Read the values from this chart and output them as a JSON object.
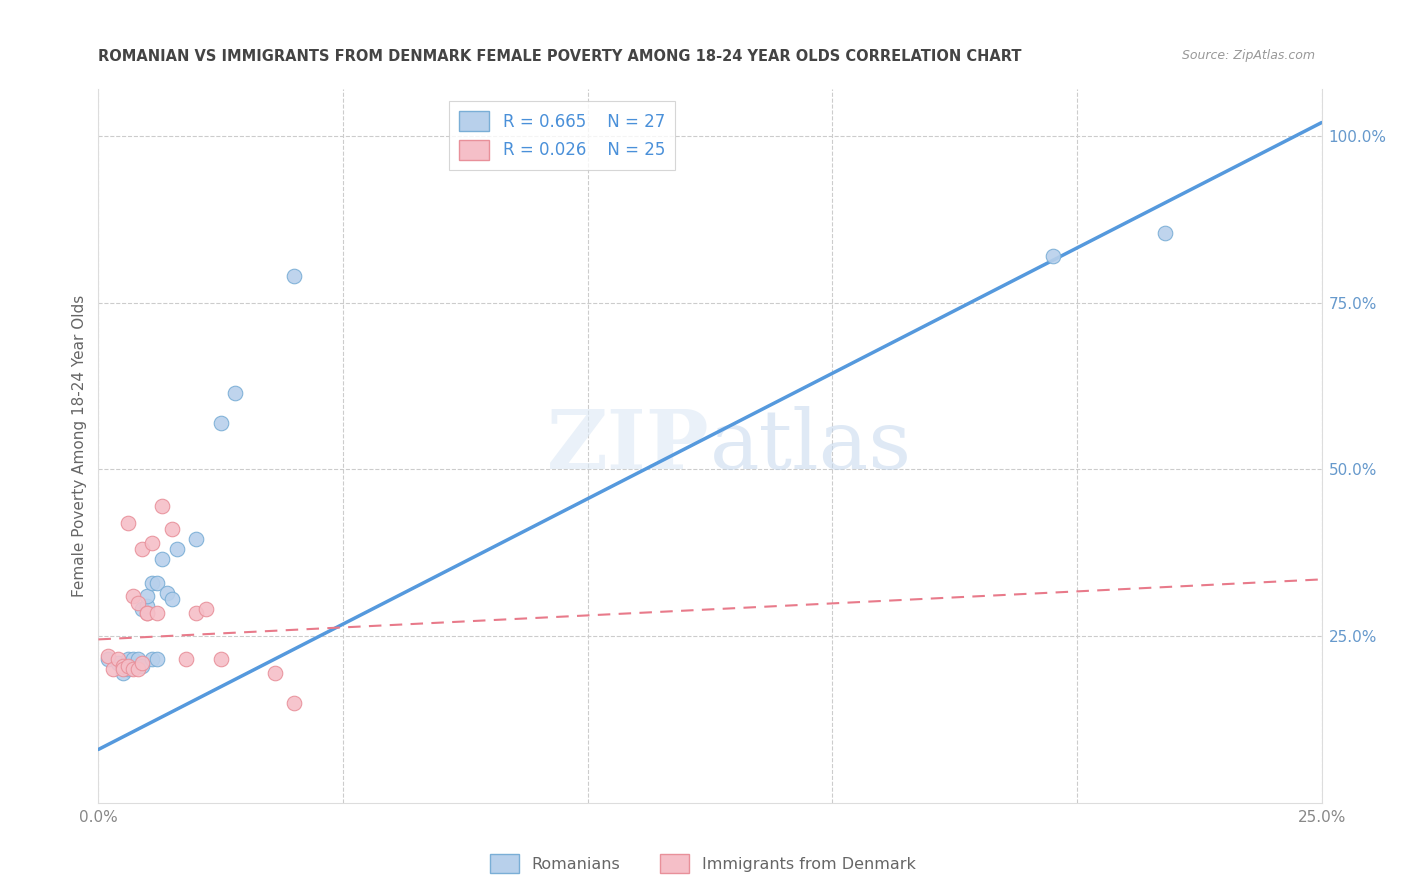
{
  "title": "ROMANIAN VS IMMIGRANTS FROM DENMARK FEMALE POVERTY AMONG 18-24 YEAR OLDS CORRELATION CHART",
  "source": "Source: ZipAtlas.com",
  "ylabel": "Female Poverty Among 18-24 Year Olds",
  "xlim": [
    0.0,
    0.25
  ],
  "ylim": [
    0.0,
    1.07
  ],
  "x_ticks": [
    0.0,
    0.05,
    0.1,
    0.15,
    0.2,
    0.25
  ],
  "y_ticks": [
    0.25,
    0.5,
    0.75,
    1.0
  ],
  "legend_r1": "R = 0.665",
  "legend_n1": "N = 27",
  "legend_r2": "R = 0.026",
  "legend_n2": "N = 25",
  "romanians_x": [
    0.002,
    0.004,
    0.005,
    0.005,
    0.006,
    0.006,
    0.007,
    0.007,
    0.008,
    0.009,
    0.009,
    0.01,
    0.01,
    0.011,
    0.011,
    0.012,
    0.012,
    0.013,
    0.014,
    0.015,
    0.016,
    0.02,
    0.025,
    0.028,
    0.04,
    0.195,
    0.218
  ],
  "romanians_y": [
    0.215,
    0.21,
    0.205,
    0.195,
    0.215,
    0.2,
    0.215,
    0.205,
    0.215,
    0.29,
    0.205,
    0.295,
    0.31,
    0.33,
    0.215,
    0.33,
    0.215,
    0.365,
    0.315,
    0.305,
    0.38,
    0.395,
    0.57,
    0.615,
    0.79,
    0.82,
    0.855
  ],
  "denmark_x": [
    0.002,
    0.003,
    0.004,
    0.005,
    0.005,
    0.006,
    0.006,
    0.007,
    0.007,
    0.008,
    0.008,
    0.009,
    0.009,
    0.01,
    0.01,
    0.011,
    0.012,
    0.013,
    0.015,
    0.018,
    0.02,
    0.022,
    0.025,
    0.036,
    0.04
  ],
  "denmark_y": [
    0.22,
    0.2,
    0.215,
    0.205,
    0.2,
    0.42,
    0.205,
    0.31,
    0.2,
    0.3,
    0.2,
    0.38,
    0.21,
    0.285,
    0.285,
    0.39,
    0.285,
    0.445,
    0.41,
    0.215,
    0.285,
    0.29,
    0.215,
    0.195,
    0.15
  ],
  "blue_line_x": [
    0.0,
    0.25
  ],
  "blue_line_y": [
    0.08,
    1.02
  ],
  "pink_line_x": [
    0.0,
    0.25
  ],
  "pink_line_y": [
    0.245,
    0.335
  ],
  "watermark_zip": "ZIP",
  "watermark_atlas": "atlas",
  "dot_size": 110,
  "blue_dot_color": "#b8d0eb",
  "blue_dot_edge": "#7aaed6",
  "pink_dot_color": "#f5bfc8",
  "pink_dot_edge": "#e8909a",
  "blue_line_color": "#5599dd",
  "pink_line_color": "#e87a8a",
  "grid_color": "#cccccc",
  "background_color": "#ffffff",
  "title_color": "#444444",
  "axis_label_color": "#666666",
  "tick_color_right": "#6699cc",
  "tick_color_bottom": "#888888"
}
